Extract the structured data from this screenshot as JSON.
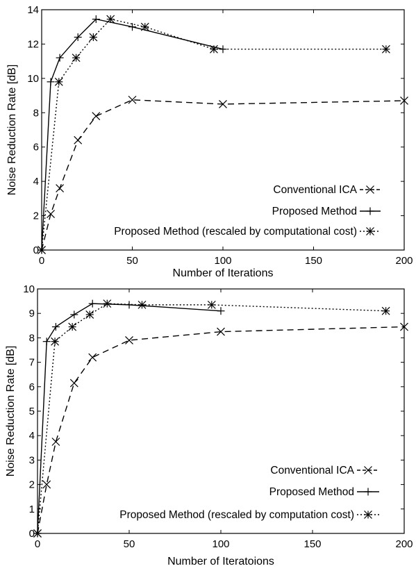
{
  "chart_data": [
    {
      "type": "line",
      "xlabel": "Number of Iterations",
      "ylabel": "Noise Reduction Rate [dB]",
      "xlim": [
        0,
        200
      ],
      "ylim": [
        0,
        14
      ],
      "xticks": [
        "0",
        "50",
        "100",
        "150",
        "200"
      ],
      "yticks": [
        "0",
        "2",
        "4",
        "6",
        "8",
        "10",
        "12",
        "14"
      ],
      "grid": false,
      "legend_position": "bottom-right",
      "series": [
        {
          "name": "Conventional ICA",
          "style": "dashed",
          "marker": "x",
          "x": [
            0,
            5,
            10,
            20,
            30,
            50,
            100,
            200
          ],
          "y": [
            0,
            2.1,
            3.6,
            6.4,
            7.8,
            8.75,
            8.5,
            8.7
          ]
        },
        {
          "name": "Proposed Method",
          "style": "solid",
          "marker": "+",
          "x": [
            0,
            5,
            10,
            20,
            30,
            50,
            100
          ],
          "y": [
            0,
            9.8,
            11.2,
            12.4,
            13.45,
            13.0,
            11.7
          ]
        },
        {
          "name": "Proposed Method (rescaled by computational cost)",
          "style": "dotted",
          "marker": "*",
          "x": [
            0,
            9.5,
            19,
            28.5,
            38,
            57,
            95,
            190
          ],
          "y": [
            0,
            9.8,
            11.2,
            12.4,
            13.45,
            13.0,
            11.7,
            11.7
          ]
        }
      ]
    },
    {
      "type": "line",
      "xlabel": "Number of Iteratoions",
      "ylabel": "Noise Reduction Rate [dB]",
      "xlim": [
        0,
        200
      ],
      "ylim": [
        0,
        10
      ],
      "xticks": [
        "0",
        "50",
        "100",
        "150",
        "200"
      ],
      "yticks": [
        "0",
        "1",
        "2",
        "3",
        "4",
        "5",
        "6",
        "7",
        "8",
        "9",
        "10"
      ],
      "grid": false,
      "legend_position": "bottom-right",
      "series": [
        {
          "name": "Conventional ICA",
          "style": "dashed",
          "marker": "x",
          "x": [
            0,
            5,
            10,
            20,
            30,
            50,
            100,
            200
          ],
          "y": [
            0,
            2.0,
            3.75,
            6.15,
            7.2,
            7.9,
            8.25,
            8.45
          ]
        },
        {
          "name": "Proposed Method",
          "style": "solid",
          "marker": "+",
          "x": [
            0,
            5,
            10,
            20,
            30,
            50,
            100
          ],
          "y": [
            0,
            7.85,
            8.45,
            8.95,
            9.4,
            9.35,
            9.1
          ]
        },
        {
          "name": "Proposed Method (rescaled by computation cost)",
          "style": "dotted",
          "marker": "*",
          "x": [
            0,
            9.5,
            19,
            28.5,
            38,
            57,
            95,
            190
          ],
          "y": [
            0,
            7.85,
            8.45,
            8.95,
            9.4,
            9.35,
            9.35,
            9.1
          ]
        }
      ]
    }
  ]
}
